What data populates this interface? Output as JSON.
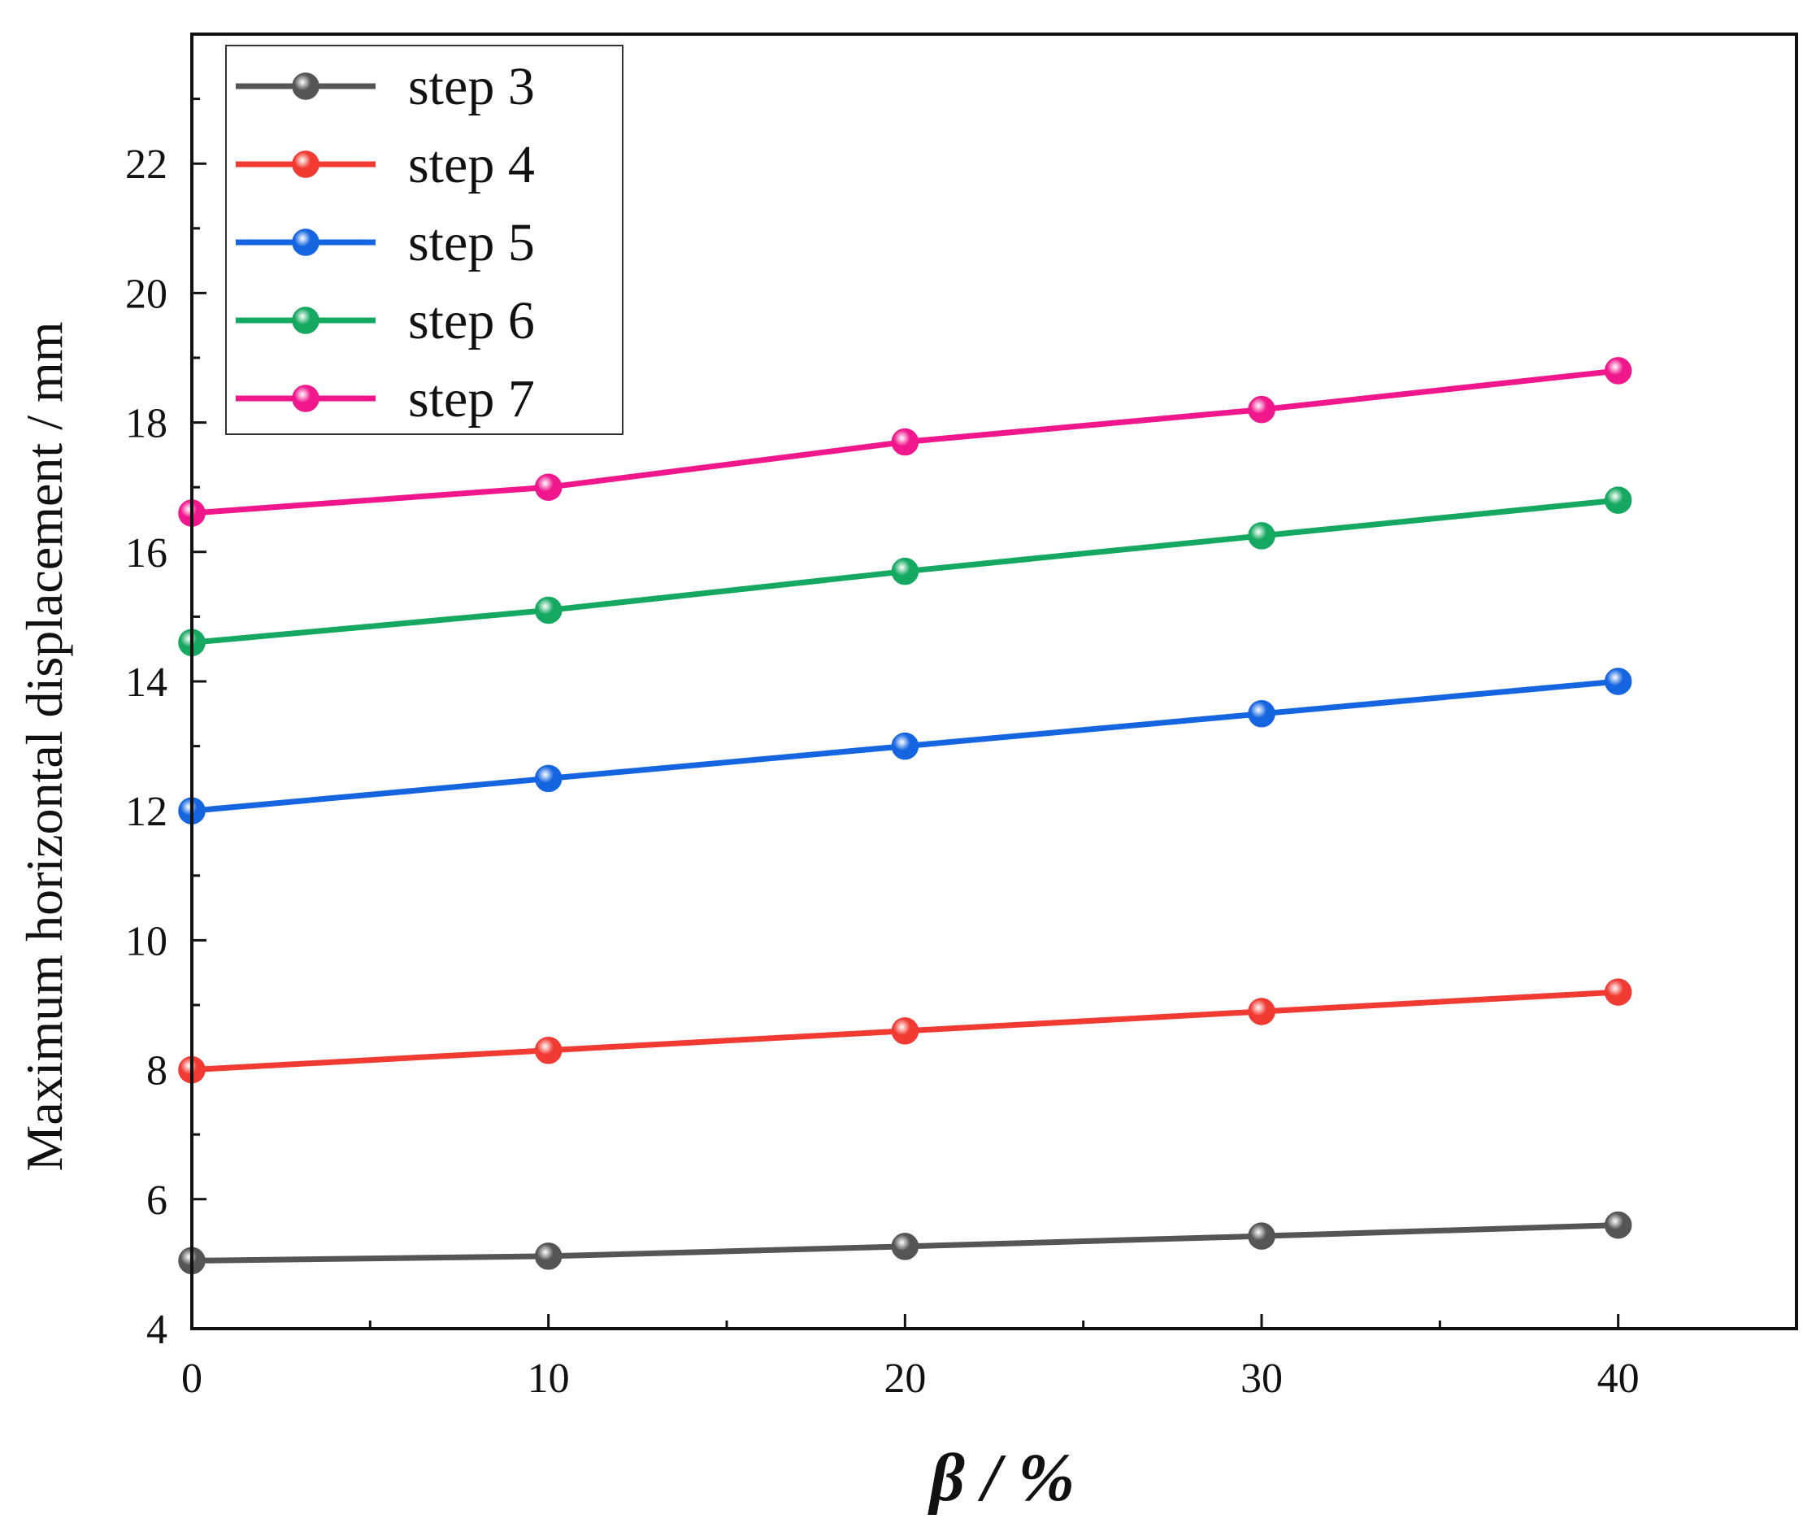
{
  "chart_data": {
    "type": "line",
    "title": "",
    "xlabel": "β / %",
    "ylabel": "Maximum horizontal displacement / mm",
    "x": [
      0,
      10,
      20,
      30,
      40
    ],
    "xlim": [
      0,
      45
    ],
    "ylim": [
      4,
      24
    ],
    "xticks": [
      0,
      10,
      20,
      30,
      40
    ],
    "yticks": [
      4,
      6,
      8,
      10,
      12,
      14,
      16,
      18,
      20,
      22
    ],
    "grid": false,
    "legend_position": "top-left",
    "series": [
      {
        "name": "step 3",
        "color": "#555555",
        "values": [
          5.05,
          5.12,
          5.27,
          5.43,
          5.6
        ]
      },
      {
        "name": "step 4",
        "color": "#f03a32",
        "values": [
          8.0,
          8.3,
          8.6,
          8.9,
          9.2
        ]
      },
      {
        "name": "step 5",
        "color": "#1565e0",
        "values": [
          12.0,
          12.5,
          13.0,
          13.5,
          14.0
        ]
      },
      {
        "name": "step 6",
        "color": "#14a860",
        "values": [
          14.6,
          15.1,
          15.7,
          16.25,
          16.8
        ]
      },
      {
        "name": "step 7",
        "color": "#f0168c",
        "values": [
          16.6,
          17.0,
          17.7,
          18.2,
          18.8
        ]
      }
    ]
  }
}
